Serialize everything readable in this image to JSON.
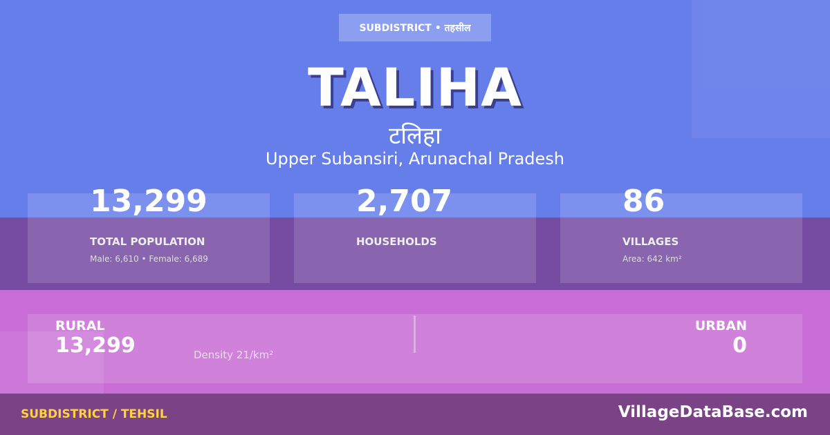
{
  "colors": {
    "top": "#667eea",
    "band": "#764ba2",
    "pink": "#c86dd5",
    "footer": "#7a4385",
    "footer_label": "#ffd23f"
  },
  "badge": "SUBDISTRICT • तहसील",
  "title": "TALIHA",
  "title_hindi": "टलिहा",
  "location": "Upper Subansiri, Arunachal Pradesh",
  "stats": [
    {
      "value": "13,299",
      "label": "TOTAL POPULATION",
      "sub": "Male: 6,610 • Female: 6,689"
    },
    {
      "value": "2,707",
      "label": "HOUSEHOLDS",
      "sub": ""
    },
    {
      "value": "86",
      "label": "VILLAGES",
      "sub": "Area: 642 km²"
    }
  ],
  "rural": {
    "label": "RURAL",
    "value": "13,299"
  },
  "density": "Density 21/km²",
  "urban": {
    "label": "URBAN",
    "value": "0"
  },
  "footer": {
    "left": "SUBDISTRICT / TEHSIL",
    "right": "VillageDataBase.com"
  }
}
